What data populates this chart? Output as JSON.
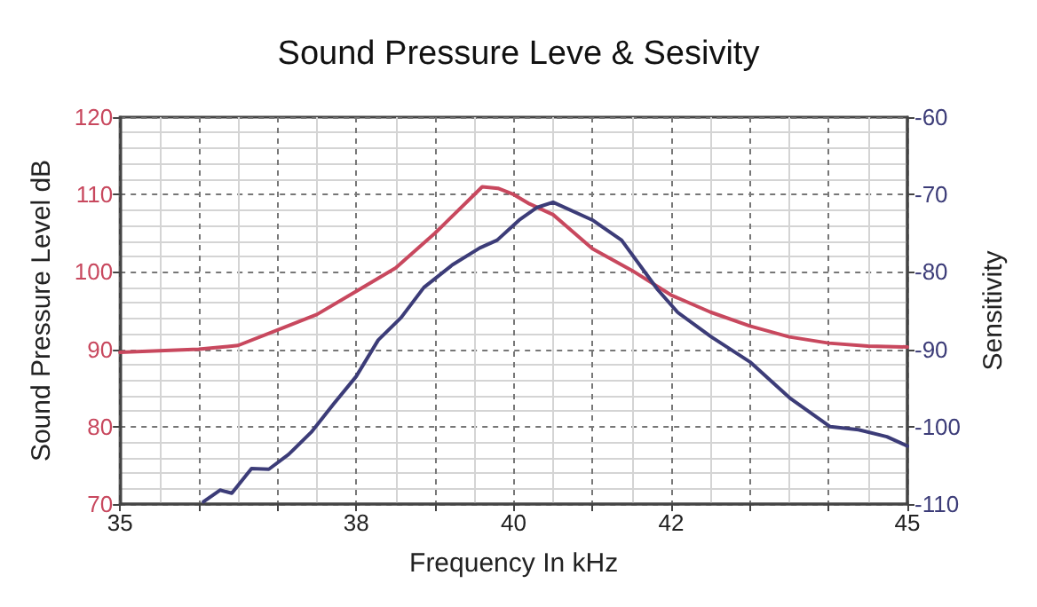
{
  "chart_data": {
    "type": "line",
    "title": "Sound Pressure Leve & Sesivity",
    "xlabel": "Frequency In kHz",
    "ylabel": "Sound Pressure Level dB",
    "y2label": "Sensitivity",
    "xlim": [
      35,
      45
    ],
    "xticks": [
      35,
      {
        "value": 36,
        "label": null
      },
      {
        "value": 37,
        "label": null
      },
      38,
      {
        "value": 39,
        "label": null
      },
      40,
      {
        "value": 41,
        "label": null
      },
      42,
      {
        "value": 43,
        "label": null
      },
      {
        "value": 44,
        "label": null
      },
      45
    ],
    "ylim": [
      70,
      120
    ],
    "yticks": [
      70,
      80,
      90,
      100,
      110,
      120
    ],
    "y2lim": [
      -110,
      -60
    ],
    "y2ticks": [
      -110,
      -100,
      -90,
      -80,
      -70,
      -60
    ],
    "grid": true,
    "series": [
      {
        "color": "#c8485e",
        "x": [
          35,
          35.5,
          36,
          36.5,
          37,
          37.5,
          38,
          38.5,
          39,
          39.5,
          39.6,
          39.8,
          40,
          40.2,
          40.5,
          41,
          41.5,
          42,
          42.5,
          43,
          43.5,
          44,
          44.5,
          45
        ],
        "values": [
          89.6,
          89.8,
          90,
          90.5,
          92.5,
          94.5,
          97.5,
          100.5,
          105,
          110,
          111,
          110.8,
          110,
          108.8,
          107.4,
          103,
          100.2,
          97,
          94.8,
          93,
          91.6,
          90.8,
          90.4,
          90.3
        ]
      },
      {
        "color": "#3c3c78",
        "axis": "y2",
        "x": [
          36.06,
          36.27,
          36.42,
          36.67,
          36.89,
          37.14,
          37.43,
          37.71,
          38.0,
          38.28,
          38.57,
          38.86,
          39.22,
          39.57,
          39.79,
          40.07,
          40.29,
          40.5,
          41.0,
          41.37,
          41.83,
          42.08,
          42.51,
          43.01,
          43.52,
          44.02,
          44.38,
          44.74,
          45.0
        ],
        "values": [
          -109.7,
          -108.2,
          -108.6,
          -105.4,
          -105.5,
          -103.6,
          -100.7,
          -97.1,
          -93.5,
          -88.8,
          -85.9,
          -82.0,
          -79.1,
          -76.9,
          -75.9,
          -73.3,
          -71.7,
          -71.0,
          -73.3,
          -75.9,
          -82.3,
          -85.2,
          -88.4,
          -91.7,
          -96.4,
          -100.0,
          -100.4,
          -101.3,
          -102.5
        ]
      }
    ]
  }
}
